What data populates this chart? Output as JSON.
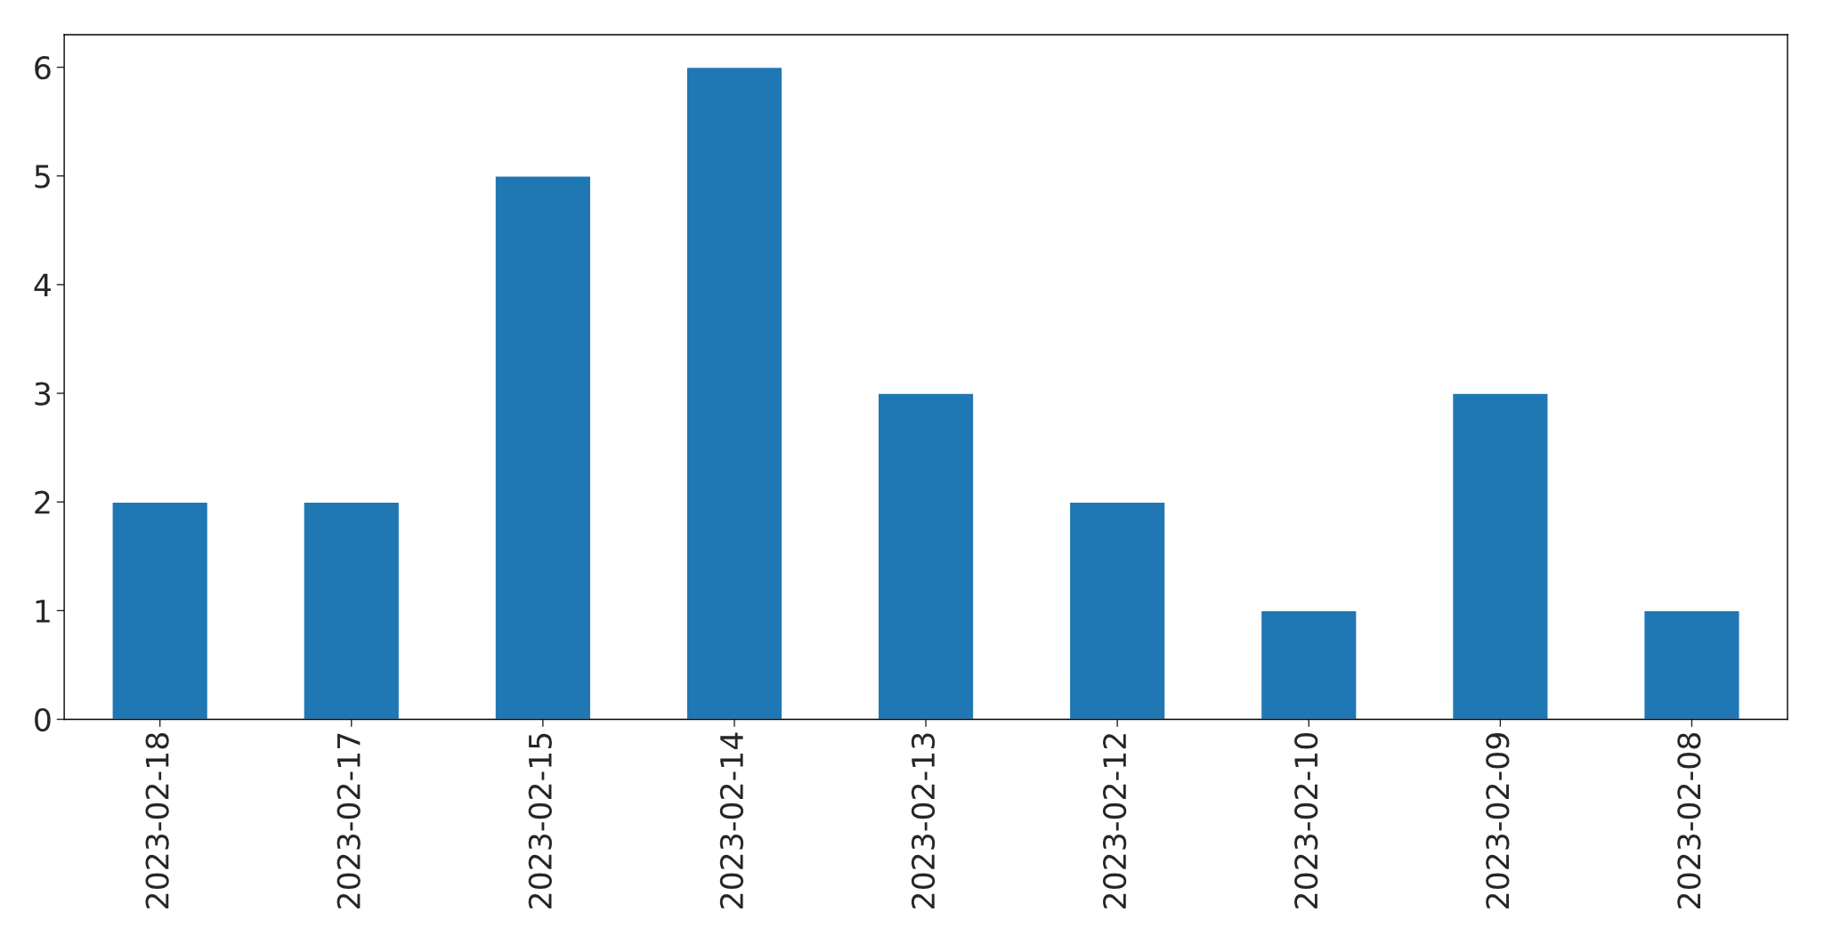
{
  "chart_data": {
    "type": "bar",
    "categories": [
      "2023-02-18",
      "2023-02-17",
      "2023-02-15",
      "2023-02-14",
      "2023-02-13",
      "2023-02-12",
      "2023-02-10",
      "2023-02-09",
      "2023-02-08"
    ],
    "values": [
      2,
      2,
      5,
      6,
      3,
      2,
      1,
      3,
      1
    ],
    "color": "#1f77b4",
    "ylim": [
      0,
      6.3
    ],
    "yticks": [
      0,
      1,
      2,
      3,
      4,
      5,
      6
    ],
    "grid": false
  }
}
